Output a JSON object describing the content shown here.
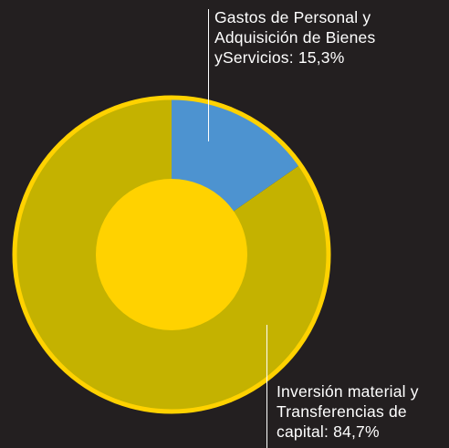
{
  "chart_data": {
    "type": "donut",
    "categories": [
      "Gastos de Personal y Adquisición de Bienes yServicios:",
      "Inversión material y Transferencias de capital:"
    ],
    "values": [
      15.3,
      84.7
    ],
    "value_labels": [
      "15,3%",
      "84,7%"
    ],
    "colors": [
      "#4d93d0",
      "#c4b200"
    ],
    "ring_color": "#ffd200",
    "hole_color": "#ffd200"
  }
}
